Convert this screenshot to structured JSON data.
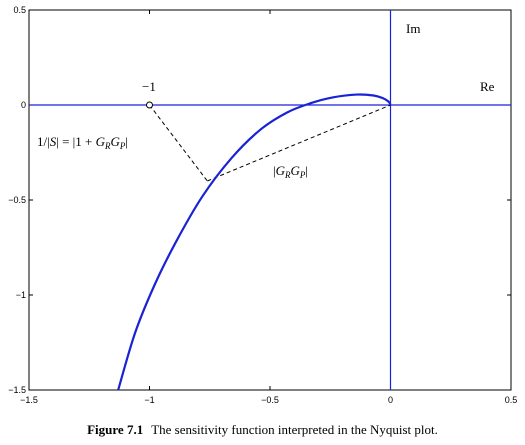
{
  "chart_data": {
    "type": "line",
    "xlim": [
      -1.5,
      0.5
    ],
    "ylim": [
      -1.5,
      0.5
    ],
    "xticks": [
      "-1.5",
      "-1",
      "-0.5",
      "0",
      "0.5"
    ],
    "yticks": [
      "0.5",
      "0",
      "-0.5",
      "-1",
      "-1.5"
    ],
    "grid": false,
    "curve": {
      "name": "",
      "color": "#1a22d6",
      "points": [
        [
          -1.13,
          -1.5
        ],
        [
          -1.06,
          -1.2
        ],
        [
          -0.98,
          -0.95
        ],
        [
          -0.89,
          -0.72
        ],
        [
          -0.78,
          -0.48
        ],
        [
          -0.66,
          -0.28
        ],
        [
          -0.54,
          -0.13
        ],
        [
          -0.43,
          -0.04
        ],
        [
          -0.33,
          0.01
        ],
        [
          -0.24,
          0.04
        ],
        [
          -0.14,
          0.055
        ],
        [
          -0.07,
          0.05
        ],
        [
          -0.03,
          0.035
        ],
        [
          -0.01,
          0.02
        ],
        [
          0,
          0.005
        ]
      ]
    },
    "real_axis_label": "Re",
    "imag_axis_label": "Im",
    "critical_point": {
      "x": -1,
      "y": 0,
      "label": "−1"
    },
    "curve_point": {
      "x": -0.76,
      "y": -0.4
    },
    "annotations": {
      "sensitivity": "1/|S| = |1 + G_R G_P|",
      "loop_gain": "|G_R G_P|"
    },
    "axis_color": "#1a22d6"
  },
  "caption": {
    "figure_label": "Figure 7.1",
    "text": "The sensitivity function interpreted in the Nyquist plot."
  }
}
